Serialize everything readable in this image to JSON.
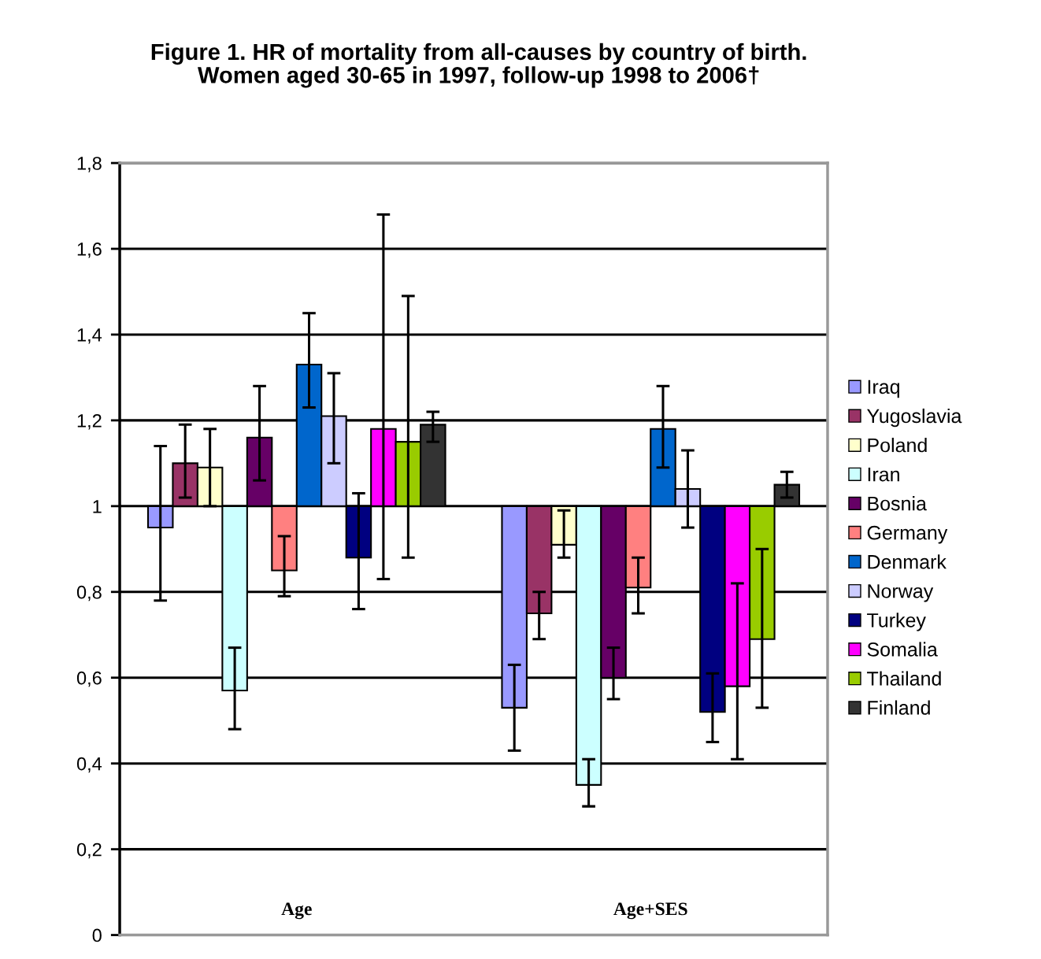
{
  "chart_data": {
    "type": "bar",
    "title": "Figure 1. HR of mortality from all-causes by country of birth.\nWomen aged 30-65 in 1997, follow-up 1998 to 2006†",
    "categories": [
      "Age",
      "Age+SES"
    ],
    "series": [
      {
        "name": "Iraq",
        "color": "#9999ff",
        "base": [
          1,
          1
        ],
        "values": [
          -0.05,
          -0.47
        ],
        "errors": [
          [
            0.78,
            1.14
          ],
          [
            0.43,
            0.63
          ]
        ]
      },
      {
        "name": "Yugoslavia",
        "color": "#993366",
        "base": [
          1,
          1
        ],
        "values": [
          0.1,
          -0.25
        ],
        "errors": [
          [
            1.02,
            1.19
          ],
          [
            0.69,
            0.8
          ]
        ]
      },
      {
        "name": "Poland",
        "color": "#ffffcc",
        "base": [
          1,
          1
        ],
        "values": [
          0.09,
          -0.09
        ],
        "errors": [
          [
            1.0,
            1.18
          ],
          [
            0.88,
            0.99
          ]
        ]
      },
      {
        "name": "Iran",
        "color": "#ccffff",
        "base": [
          1,
          1
        ],
        "values": [
          -0.43,
          -0.65
        ],
        "errors": [
          [
            0.48,
            0.67
          ],
          [
            0.3,
            0.41
          ]
        ]
      },
      {
        "name": "Bosnia",
        "color": "#660066",
        "base": [
          1,
          1
        ],
        "values": [
          0.16,
          -0.4
        ],
        "errors": [
          [
            1.06,
            1.28
          ],
          [
            0.55,
            0.67
          ]
        ]
      },
      {
        "name": "Germany",
        "color": "#ff8080",
        "base": [
          1,
          1
        ],
        "values": [
          -0.15,
          -0.19
        ],
        "errors": [
          [
            0.79,
            0.93
          ],
          [
            0.75,
            0.88
          ]
        ]
      },
      {
        "name": "Denmark",
        "color": "#0066cc",
        "base": [
          1,
          1
        ],
        "values": [
          0.33,
          0.18
        ],
        "errors": [
          [
            1.23,
            1.45
          ],
          [
            1.09,
            1.28
          ]
        ]
      },
      {
        "name": "Norway",
        "color": "#ccccff",
        "base": [
          1,
          1
        ],
        "values": [
          0.21,
          0.04
        ],
        "errors": [
          [
            1.1,
            1.31
          ],
          [
            0.95,
            1.13
          ]
        ]
      },
      {
        "name": "Turkey",
        "color": "#000080",
        "base": [
          1,
          1
        ],
        "values": [
          -0.12,
          -0.48
        ],
        "errors": [
          [
            0.76,
            1.03
          ],
          [
            0.45,
            0.61
          ]
        ]
      },
      {
        "name": "Somalia",
        "color": "#ff00ff",
        "base": [
          1,
          1
        ],
        "values": [
          0.18,
          -0.42
        ],
        "errors": [
          [
            0.83,
            1.68
          ],
          [
            0.41,
            0.82
          ]
        ]
      },
      {
        "name": "Thailand",
        "color": "#99cc00",
        "base": [
          1,
          1
        ],
        "values": [
          0.15,
          -0.31
        ],
        "errors": [
          [
            0.88,
            1.49
          ],
          [
            0.53,
            0.9
          ]
        ]
      },
      {
        "name": "Finland",
        "color": "#333333",
        "base": [
          1,
          1
        ],
        "values": [
          0.19,
          0.05
        ],
        "errors": [
          [
            1.15,
            1.22
          ],
          [
            1.02,
            1.08
          ]
        ]
      }
    ],
    "ylim": [
      0,
      1.8
    ],
    "yticks": [
      {
        "value": 0,
        "label": "0"
      },
      {
        "value": 0.2,
        "label": "0,2"
      },
      {
        "value": 0.4,
        "label": "0,4"
      },
      {
        "value": 0.6,
        "label": "0,6"
      },
      {
        "value": 0.8,
        "label": "0,8"
      },
      {
        "value": 1,
        "label": "1"
      },
      {
        "value": 1.2,
        "label": "1,2"
      },
      {
        "value": 1.4,
        "label": "1,4"
      },
      {
        "value": 1.6,
        "label": "1,6"
      },
      {
        "value": 1.8,
        "label": "1,8"
      }
    ],
    "grid": "y",
    "legend": "right"
  }
}
